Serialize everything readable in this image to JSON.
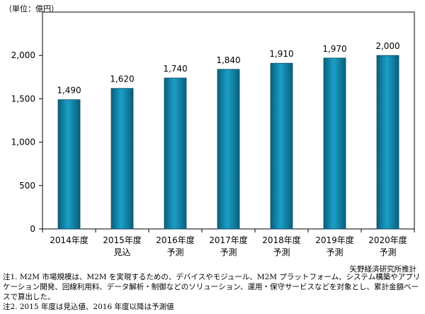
{
  "chart_data": {
    "type": "bar",
    "unit_label": "（単位：億円）",
    "categories": [
      [
        "2014年度",
        ""
      ],
      [
        "2015年度",
        "見込"
      ],
      [
        "2016年度",
        "予測"
      ],
      [
        "2017年度",
        "予測"
      ],
      [
        "2018年度",
        "予測"
      ],
      [
        "2019年度",
        "予測"
      ],
      [
        "2020年度",
        "予測"
      ]
    ],
    "values": [
      1490,
      1620,
      1740,
      1840,
      1910,
      1970,
      2000
    ],
    "data_labels": [
      "1,490",
      "1,620",
      "1,740",
      "1,840",
      "1,910",
      "1,970",
      "2,000"
    ],
    "ylim": [
      0,
      2500
    ],
    "yticks": [
      0,
      500,
      1000,
      1500,
      2000
    ],
    "ytick_labels": [
      "0",
      "500",
      "1,000",
      "1,500",
      "2,000"
    ],
    "grid": false,
    "bar_color": "#1b9fc7",
    "bar_dark": "#0a5f7d"
  },
  "source": "矢野経済研究所推計",
  "notes": [
    "注1. M2M 市場規模は、M2M を実現するための、デバイスやモジュール、M2M プラットフォーム、システム構築やアプリケーション開発、回線利用料、データ解析・制御などのソリューション、運用・保守サービスなどを対象とし、累計金額ベースで算出した。",
    "注2. 2015 年度は見込値、2016 年度以降は予測値"
  ]
}
